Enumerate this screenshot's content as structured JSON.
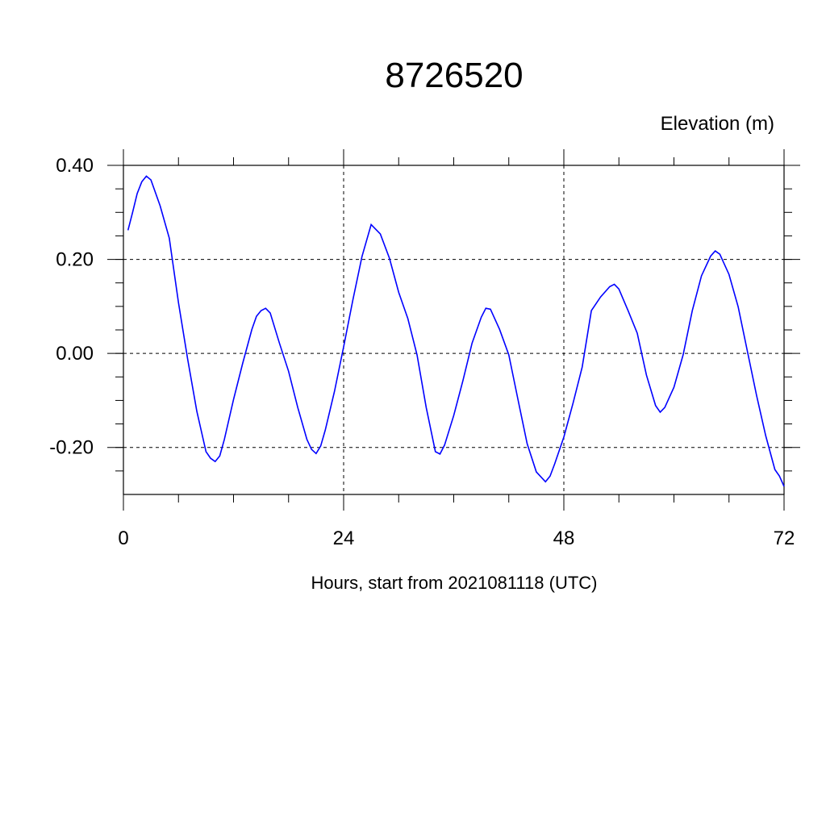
{
  "chart_data": {
    "type": "line",
    "title": "8726520",
    "subtitle": "Elevation (m)",
    "x_label": "Hours, start from 2021081118 (UTC)",
    "x": [
      0.5,
      1,
      1.5,
      2,
      2.5,
      3,
      4,
      5,
      6,
      7,
      8,
      9,
      9.5,
      10,
      10.5,
      11,
      12,
      13,
      14,
      14.5,
      15,
      15.5,
      16,
      17,
      18,
      19,
      20,
      20.5,
      21,
      21.5,
      22,
      23,
      24,
      25,
      26,
      27,
      28,
      29,
      30,
      31,
      32,
      33,
      34,
      34.5,
      35,
      36,
      37,
      38,
      39,
      39.5,
      40,
      41,
      42,
      43,
      44,
      45,
      46,
      46.5,
      47,
      48,
      49,
      50,
      51,
      52,
      53,
      53.5,
      54,
      55,
      56,
      57,
      58,
      58.5,
      59,
      60,
      61,
      62,
      63,
      64,
      64.5,
      65,
      66,
      67,
      68,
      69,
      70,
      71,
      71.5,
      72
    ],
    "series": [
      {
        "color": "#0000ff",
        "values": [
          0.262,
          0.3,
          0.34,
          0.365,
          0.377,
          0.369,
          0.314,
          0.245,
          0.108,
          -0.012,
          -0.123,
          -0.209,
          -0.223,
          -0.23,
          -0.218,
          -0.183,
          -0.098,
          -0.021,
          0.051,
          0.079,
          0.091,
          0.096,
          0.086,
          0.022,
          -0.038,
          -0.115,
          -0.183,
          -0.204,
          -0.213,
          -0.197,
          -0.163,
          -0.081,
          0.014,
          0.113,
          0.206,
          0.274,
          0.254,
          0.202,
          0.13,
          0.074,
          -0.003,
          -0.115,
          -0.209,
          -0.214,
          -0.195,
          -0.132,
          -0.058,
          0.022,
          0.077,
          0.096,
          0.094,
          0.051,
          -0.003,
          -0.098,
          -0.192,
          -0.252,
          -0.273,
          -0.261,
          -0.235,
          -0.178,
          -0.106,
          -0.029,
          0.091,
          0.12,
          0.142,
          0.147,
          0.137,
          0.091,
          0.043,
          -0.046,
          -0.111,
          -0.125,
          -0.115,
          -0.072,
          -0.003,
          0.091,
          0.165,
          0.207,
          0.218,
          0.211,
          0.168,
          0.099,
          0.005,
          -0.089,
          -0.175,
          -0.247,
          -0.261,
          -0.283
        ]
      }
    ],
    "xlim": [
      0,
      72
    ],
    "xticks": [
      0,
      24,
      48,
      72
    ],
    "ylim": [
      -0.3,
      0.4
    ],
    "yticks": [
      {
        "value": 0.4,
        "label": "0.40"
      },
      {
        "value": 0.2,
        "label": "0.20"
      },
      {
        "value": 0,
        "label": "0.00"
      },
      {
        "value": -0.2,
        "label": "-0.20"
      }
    ],
    "grid": true
  }
}
